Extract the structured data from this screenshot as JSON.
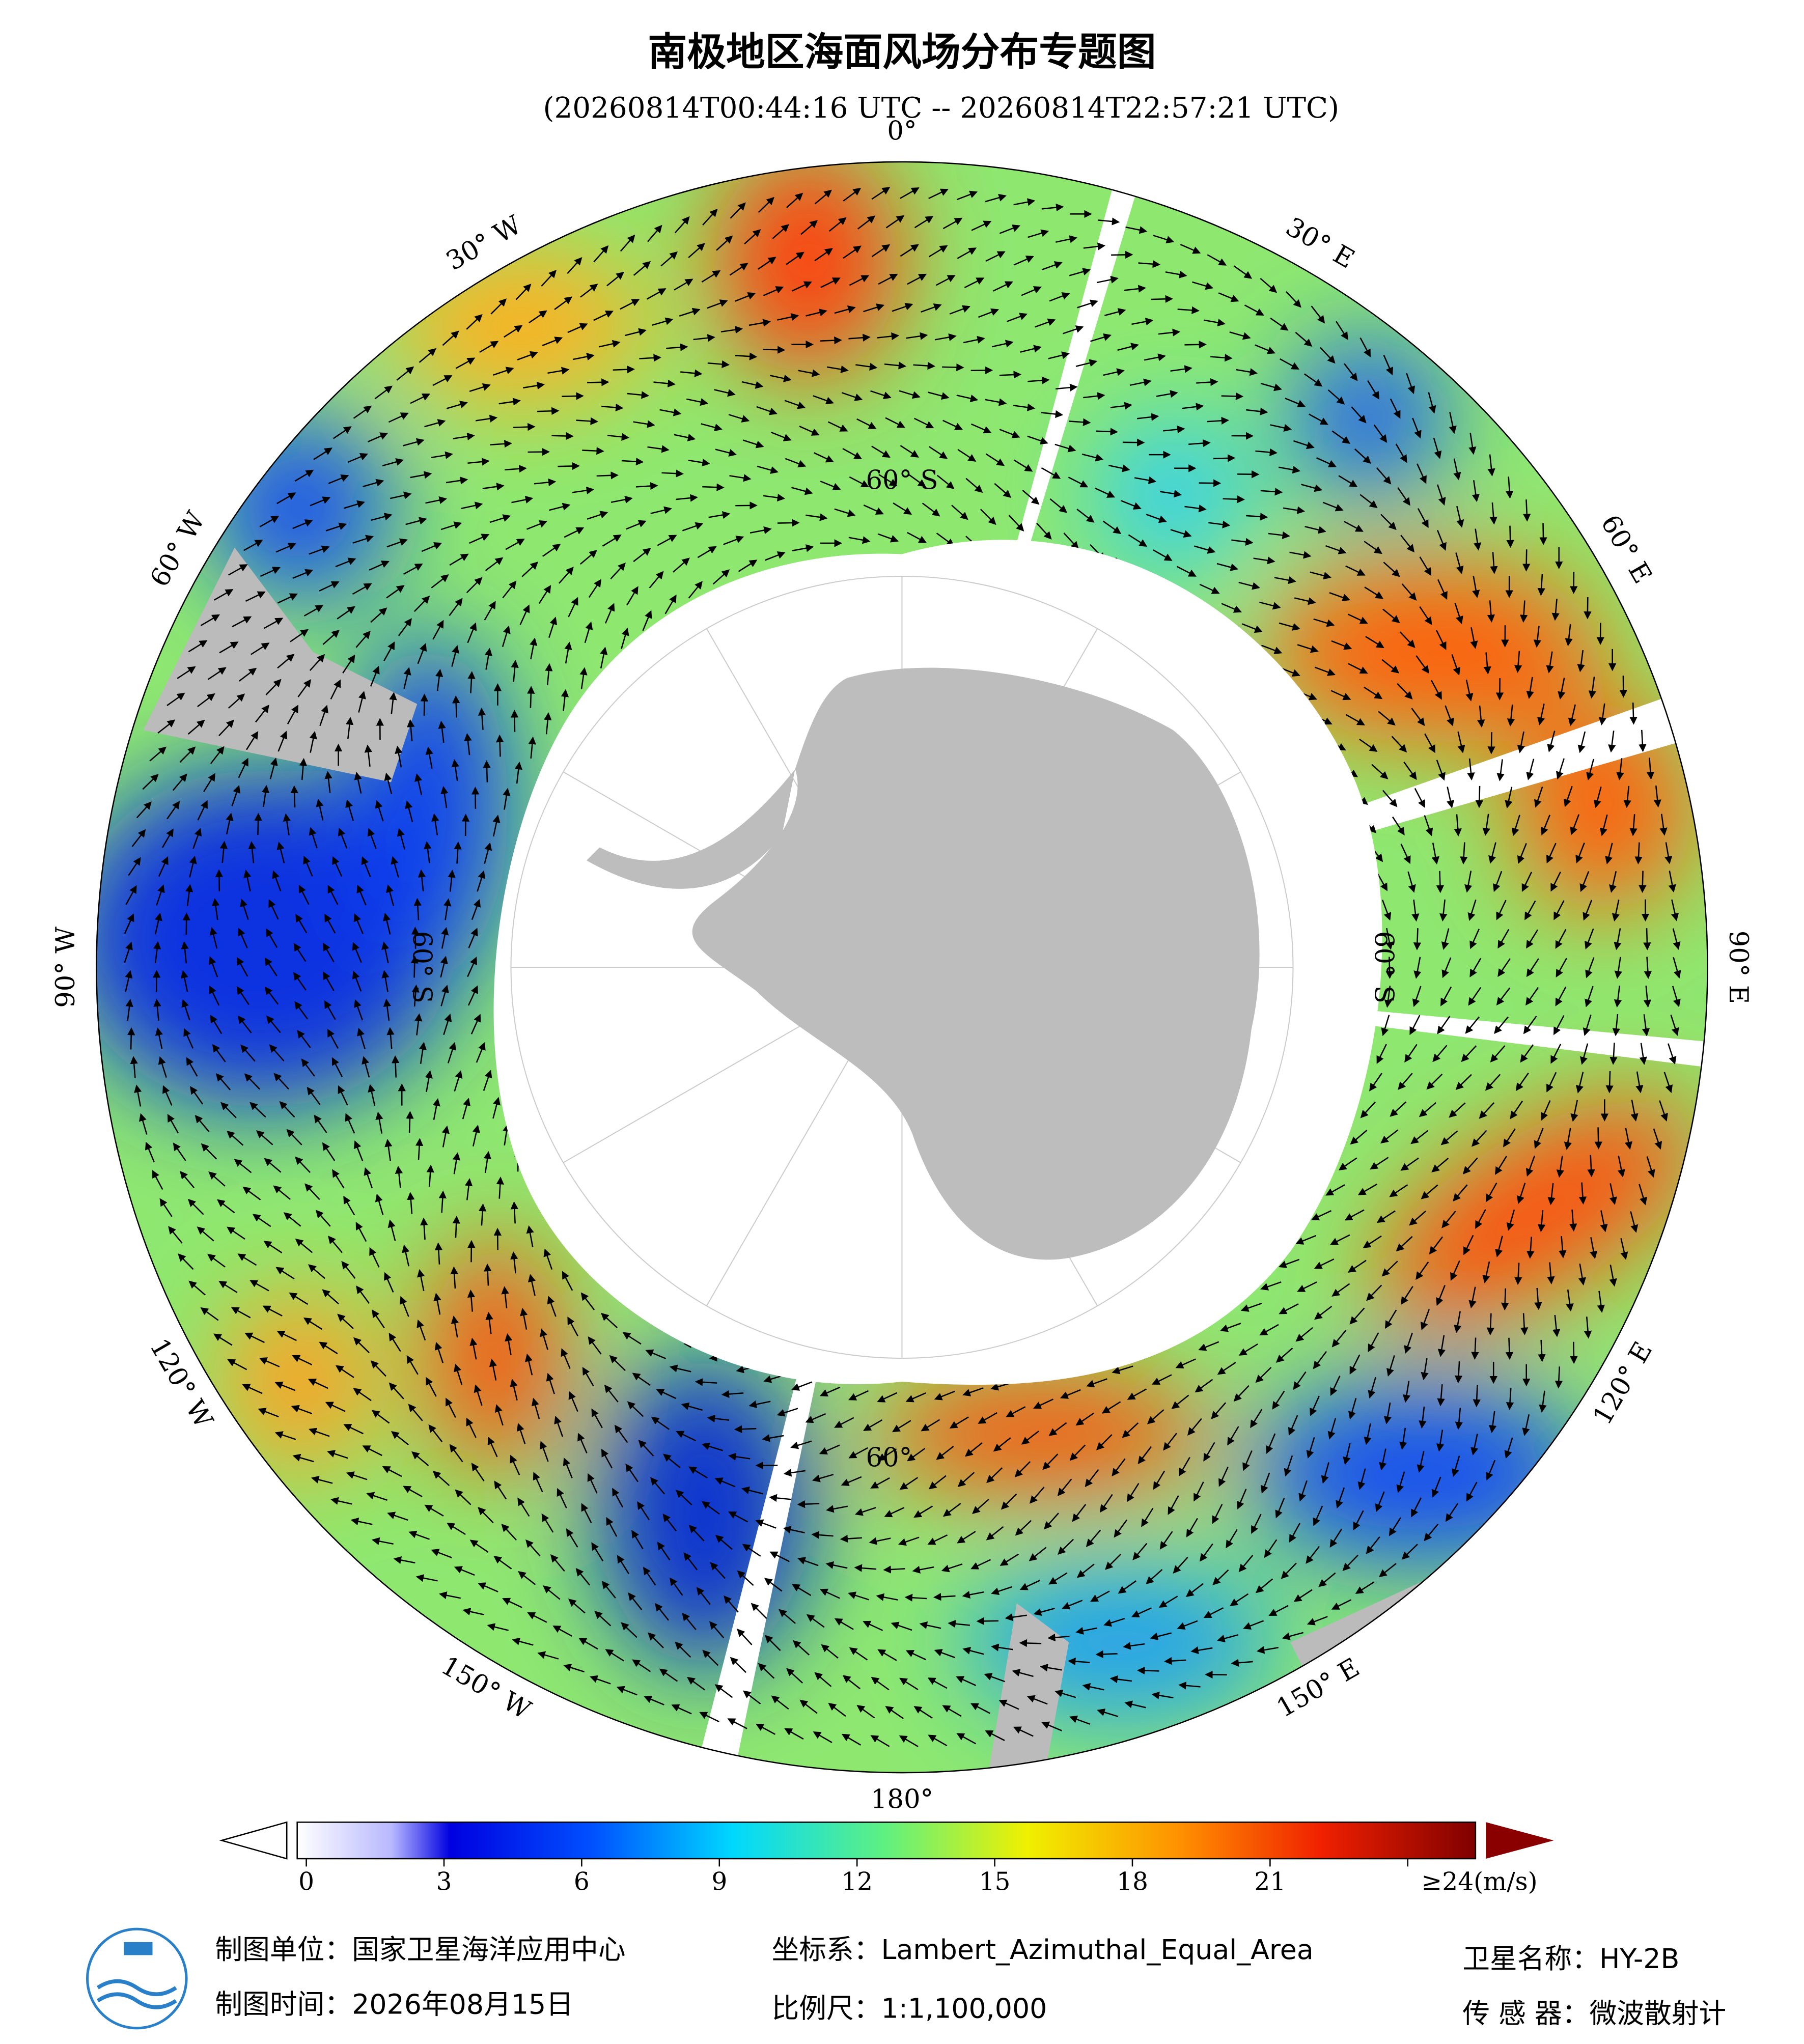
{
  "title": "南极地区海面风场分布专题图",
  "subtitle": "(20260814T00:44:16 UTC -- 20260814T22:57:21 UTC)",
  "map": {
    "lon_labels": [
      "0°",
      "30° E",
      "60° E",
      "90° E",
      "120° E",
      "150° E",
      "180°",
      "150° W",
      "120° W",
      "90° W",
      "60° W",
      "30° W"
    ],
    "lat_labels": [
      "60° S",
      "60° S",
      "60° S",
      "60°"
    ]
  },
  "colorbar": {
    "ticks": [
      0,
      3,
      6,
      9,
      12,
      15,
      18,
      21,
      {
        "value": 24,
        "label": "≥24(m/s)"
      }
    ]
  },
  "footer": {
    "unit": "制图单位：国家卫星海洋应用中心",
    "time": "制图时间：2026年08月15日",
    "crs": "坐标系：Lambert_Azimuthal_Equal_Area",
    "scale": "比例尺：1:1,100,000",
    "satellite": "卫星名称：HY-2B",
    "sensor": "传 感 器：微波散射计"
  }
}
